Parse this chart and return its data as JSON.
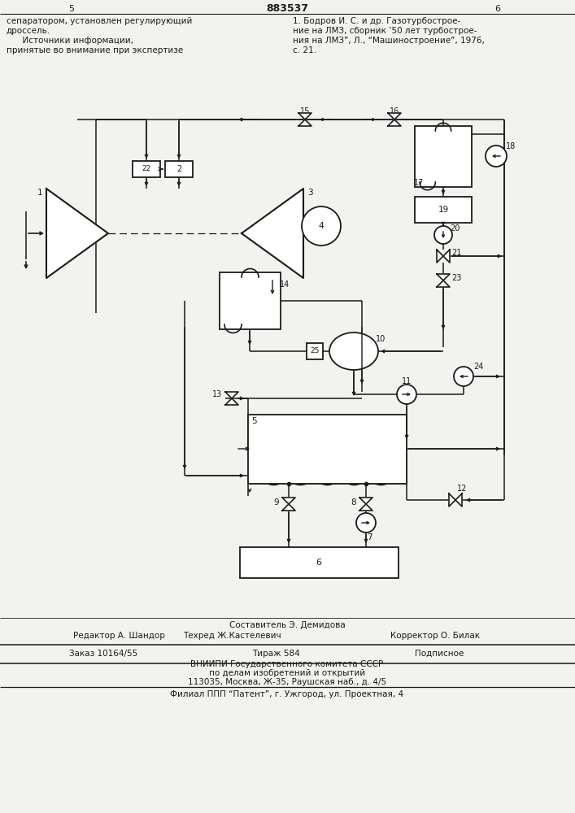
{
  "bg_color": "#f2f2ee",
  "line_color": "#1a1a1a",
  "header_text_left": [
    "сепаратором, установлен регулирующий",
    "дроссель.",
    "      Источники информации,",
    "принятые во внимание при экспертизе"
  ],
  "header_text_right": [
    "1. Бодров И. С. и др. Газотурбострое-",
    "ние на ЛМЗ, сборник ’50 лет турбострое-",
    "ния на ЛМЗ”, Л., “Машиностроение”, 1976,",
    "с. 21."
  ],
  "patent_number": "883537",
  "page_left": "5",
  "page_right": "6",
  "footer_line1_center": "Составитель Э. Демидова",
  "footer_line1_left": "Редактор А. Шандор",
  "footer_line1_center2": "Техред Ж.Кастелевич",
  "footer_line1_right": "Корректор О. Билак",
  "footer_line2_left": "Заказ 10164/55",
  "footer_line2_mid": "Тираж 584",
  "footer_line2_right": "Подписное",
  "footer_line3": "ВНИИПИ Государственного комитета СССР",
  "footer_line4": "по делам изобретений и открытий",
  "footer_line5": "113035, Москва, Ж-35, Раушская наб., д. 4/5",
  "footer_line6": "Филиал ППП “Патент”, г. Ужгород, ул. Проектная, 4"
}
